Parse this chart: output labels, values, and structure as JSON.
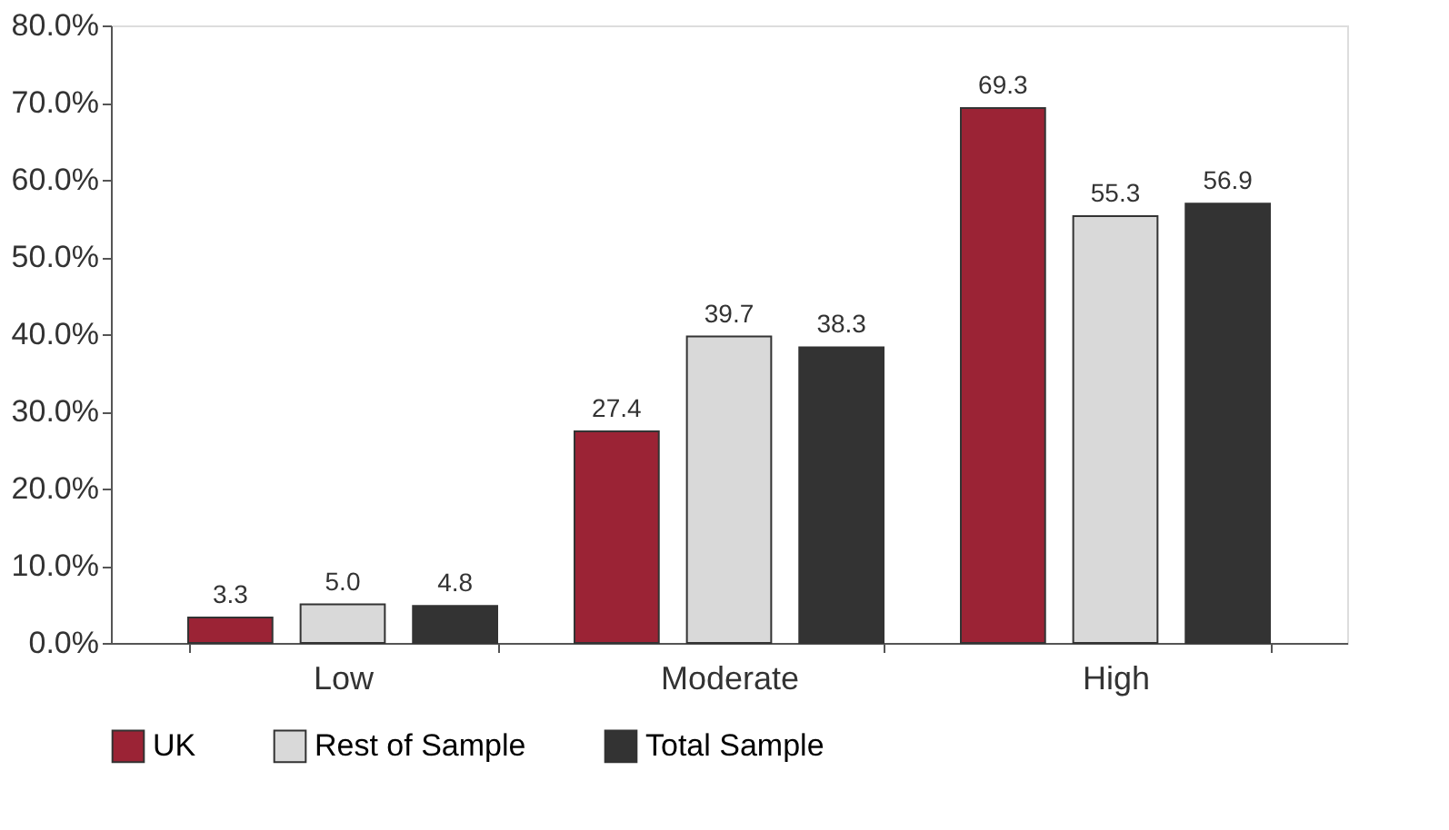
{
  "chart_data": {
    "type": "bar",
    "categories": [
      "Low",
      "Moderate",
      "High"
    ],
    "series": [
      {
        "name": "UK",
        "color": "#9b2335",
        "values": [
          3.3,
          27.4,
          69.3
        ],
        "value_labels": [
          "3.3",
          "27.4",
          "69.3"
        ]
      },
      {
        "name": "Rest of Sample",
        "color": "#d9d9d9",
        "values": [
          5.0,
          39.7,
          55.3
        ],
        "value_labels": [
          "5.0",
          "39.7",
          "55.3"
        ]
      },
      {
        "name": "Total Sample",
        "color": "#333333",
        "values": [
          4.8,
          38.3,
          56.9
        ],
        "value_labels": [
          "4.8",
          "38.3",
          "56.9"
        ]
      }
    ],
    "ylim": [
      0,
      80
    ],
    "yticks": [
      {
        "value": 0,
        "label": "0.0%"
      },
      {
        "value": 10,
        "label": "10.0%"
      },
      {
        "value": 20,
        "label": "20.0%"
      },
      {
        "value": 30,
        "label": "30.0%"
      },
      {
        "value": 40,
        "label": "40.0%"
      },
      {
        "value": 50,
        "label": "50.0%"
      },
      {
        "value": 60,
        "label": "60.0%"
      },
      {
        "value": 70,
        "label": "70.0%"
      },
      {
        "value": 80,
        "label": "80.0%"
      }
    ],
    "grid": false,
    "legend": "bottom"
  }
}
